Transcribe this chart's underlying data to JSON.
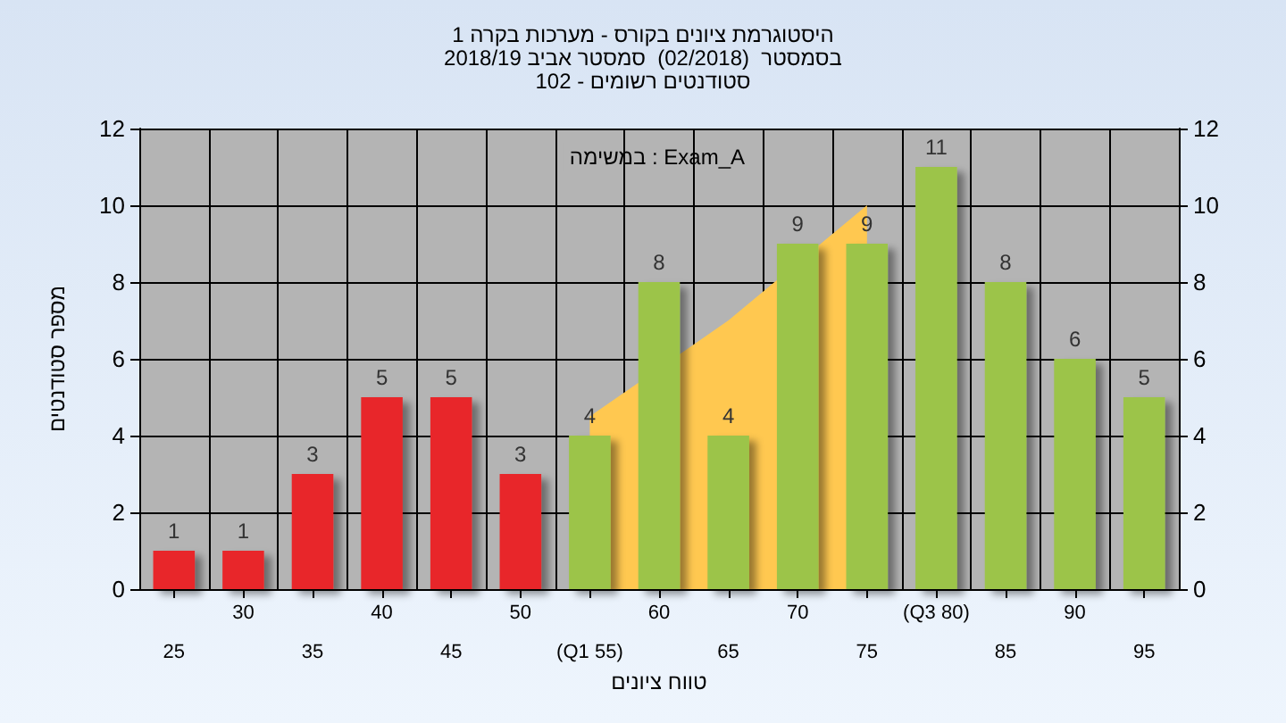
{
  "chart_data": {
    "type": "bar",
    "title": "היסטוגרמת ציונים בקורס - מערכות בקרה 1\nבסמסטר  (02/2018)  סמסטר אביב 2018/19\nסטודנטים רשומים - 102",
    "xlabel": "טווח ציונים",
    "ylabel": "מספר סטודנטים",
    "annotations": [
      "במשימה : Exam_A"
    ],
    "categories": [
      "25",
      "30",
      "35",
      "40",
      "45",
      "50",
      "(Q1 55)",
      "60",
      "65",
      "70",
      "75",
      "(Q3 80)",
      "85",
      "90",
      "95"
    ],
    "series": [
      {
        "type": "area",
        "color": "#ffc850",
        "values": [
          null,
          null,
          null,
          null,
          null,
          null,
          4.5,
          null,
          7,
          null,
          10,
          null,
          null,
          null,
          null
        ]
      },
      {
        "value_labels": [
          "1",
          "1",
          "3",
          "5",
          "5",
          "3",
          "4",
          "8",
          "4",
          "9",
          "9",
          "11",
          "8",
          "6",
          "5"
        ],
        "colors": [
          "#e8282a",
          "#e8282a",
          "#e8282a",
          "#e8282a",
          "#e8282a",
          "#e8282a",
          "#9cc448",
          "#9cc448",
          "#9cc448",
          "#9cc448",
          "#9cc448",
          "#9cc448",
          "#9cc448",
          "#9cc448",
          "#9cc448"
        ],
        "values": [
          1,
          1,
          3,
          5,
          5,
          3,
          4,
          8,
          4,
          9,
          9,
          11,
          8,
          6,
          5
        ]
      }
    ],
    "ylim": [
      0,
      12
    ],
    "yticks": [
      0,
      2,
      4,
      6,
      8,
      10,
      12
    ],
    "y2lim": [
      0,
      12
    ],
    "y2ticks": [
      0,
      2,
      4,
      6,
      8,
      10,
      12
    ],
    "grid": true
  }
}
